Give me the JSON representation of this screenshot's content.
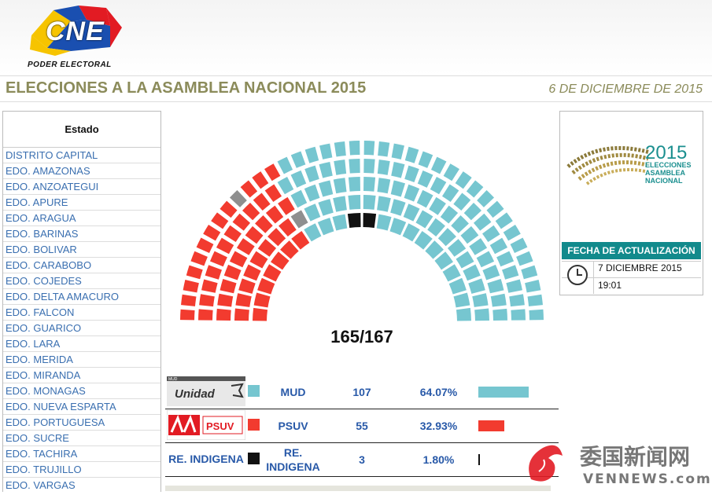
{
  "header": {
    "logo_text": "CNE",
    "logo_subtitle": "PODER ELECTORAL"
  },
  "titlebar": {
    "title": "ELECCIONES A LA ASAMBLEA NACIONAL 2015",
    "date": "6 DE DICIEMBRE DE 2015"
  },
  "states": {
    "header": "Estado",
    "items": [
      "DISTRITO CAPITAL",
      "EDO. AMAZONAS",
      "EDO. ANZOATEGUI",
      "EDO. APURE",
      "EDO. ARAGUA",
      "EDO. BARINAS",
      "EDO. BOLIVAR",
      "EDO. CARABOBO",
      "EDO. COJEDES",
      "EDO. DELTA AMACURO",
      "EDO. FALCON",
      "EDO. GUARICO",
      "EDO. LARA",
      "EDO. MERIDA",
      "EDO. MIRANDA",
      "EDO. MONAGAS",
      "EDO. NUEVA ESPARTA",
      "EDO. PORTUGUESA",
      "EDO. SUCRE",
      "EDO. TACHIRA",
      "EDO. TRUJILLO",
      "EDO. VARGAS"
    ]
  },
  "hemicycle": {
    "count_label": "165/167",
    "colors": {
      "mud": "#76c6d0",
      "psuv": "#f23b2f",
      "indigena": "#111111",
      "pending": "#8f8f8f"
    }
  },
  "results": [
    {
      "logo_text": "Unidad",
      "logo_tag": "MUD",
      "name": "MUD",
      "seats": "107",
      "pct": "64.07%",
      "fraction": 0.6407,
      "color": "#76c6d0"
    },
    {
      "logo_text": "PSUV",
      "logo_tag": "",
      "name": "PSUV",
      "seats": "55",
      "pct": "32.93%",
      "fraction": 0.3293,
      "color": "#f23b2f"
    },
    {
      "logo_text": "RE. INDIGENA",
      "logo_tag": "",
      "name": "RE. INDIGENA",
      "seats": "3",
      "pct": "1.80%",
      "fraction": 0.018,
      "color": "#111111"
    }
  ],
  "side": {
    "elecciones_year": "2015",
    "elecciones_l1": "ELECCIONES",
    "elecciones_l2": "ASAMBLEA",
    "elecciones_l3": "NACIONAL",
    "fecha_header": "FECHA DE ACTUALIZACIÓN",
    "fecha_date": "7 DICIEMBRE 2015",
    "fecha_time": "19:01"
  },
  "watermark": {
    "cn": "委国新闻网",
    "latin": "VENNEWS.com"
  }
}
